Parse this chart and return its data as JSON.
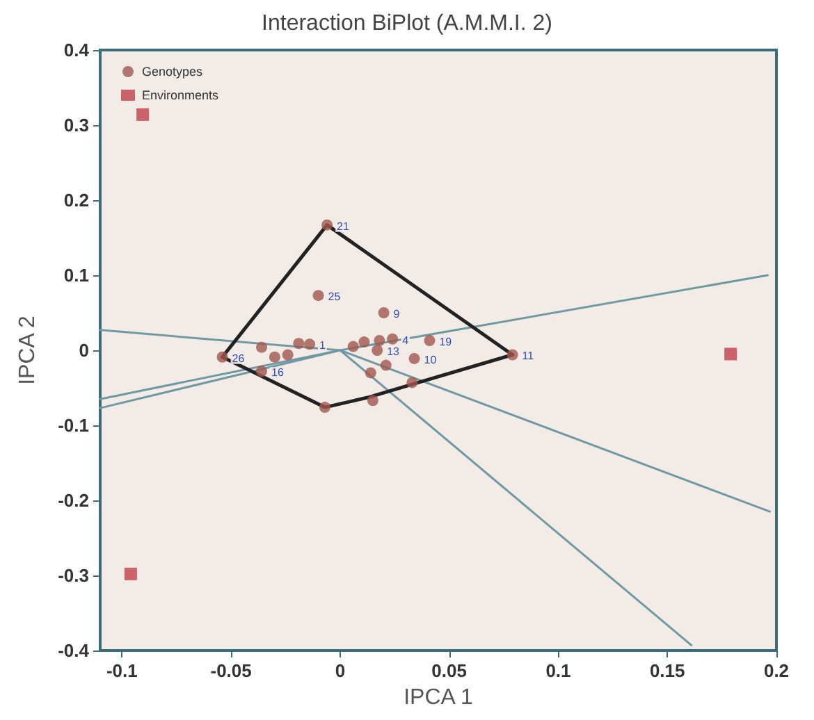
{
  "chart_data": {
    "type": "scatter",
    "title": "Interaction BiPlot (A.M.M.I. 2)",
    "xlabel": "IPCA 1",
    "ylabel": "IPCA 2",
    "xlim": [
      -0.11,
      0.2
    ],
    "xticks": [
      -0.1,
      -0.05,
      0,
      0.05,
      0.1,
      0.15,
      0.2
    ],
    "ylim": [
      -0.4,
      0.4
    ],
    "yticks": [
      -0.4,
      -0.3,
      -0.2,
      -0.1,
      0,
      0.1,
      0.2,
      0.3,
      0.4
    ],
    "grid": false,
    "legend": "top left",
    "series": [
      {
        "type": "line",
        "color": "#6f9aa3",
        "marker": "none",
        "x": [
          -0.11,
          0,
          0.196
        ],
        "values": [
          -0.065,
          0,
          0.1
        ]
      },
      {
        "type": "line",
        "color": "#6f9aa3",
        "marker": "none",
        "x": [
          -0.11,
          0,
          0.197
        ],
        "values": [
          0.027,
          0,
          -0.215
        ]
      },
      {
        "type": "line",
        "color": "#6f9aa3",
        "marker": "none",
        "x": [
          -0.11,
          0,
          0.161
        ],
        "values": [
          -0.077,
          0,
          -0.393
        ]
      },
      {
        "type": "line",
        "color": "#222222",
        "marker": "none",
        "x": [
          -0.054,
          -0.006,
          0.079
        ],
        "values": [
          -0.009,
          0.167,
          -0.006
        ]
      },
      {
        "type": "line",
        "color": "#222222",
        "marker": "none",
        "x": [
          -0.054,
          -0.042,
          -0.007,
          0.0125,
          0.038,
          0.079
        ],
        "values": [
          -0.009,
          -0.026,
          -0.076,
          -0.063,
          -0.041,
          -0.006
        ]
      },
      {
        "name": "Genotypes",
        "color": "#a0574f",
        "marker": "circle",
        "x": [
          -0.006,
          -0.01,
          0.02,
          0.079,
          -0.054,
          -0.036,
          0.041,
          0.024,
          0.018,
          0.017,
          0.034,
          0.021,
          0.014,
          0.033,
          -0.007,
          0.015,
          0.006,
          -0.014,
          -0.036,
          -0.019,
          -0.03,
          -0.024,
          0.011
        ],
        "values": [
          0.167,
          0.073,
          0.05,
          -0.006,
          -0.009,
          -0.028,
          0.013,
          0.015,
          0.013,
          0.0,
          -0.011,
          -0.02,
          -0.03,
          -0.043,
          -0.076,
          -0.067,
          0.005,
          0.008,
          0.004,
          0.009,
          -0.009,
          -0.006,
          0.011
        ]
      },
      {
        "name": "Environments",
        "color": "#c0404a",
        "marker": "square",
        "x": [
          0.179,
          -0.0905,
          -0.096
        ],
        "values": [
          -0.005,
          0.314,
          -0.298
        ]
      }
    ],
    "annotations": [
      {
        "text": "21",
        "x": -0.006,
        "y": 0.167
      },
      {
        "text": "25",
        "x": -0.01,
        "y": 0.073
      },
      {
        "text": "9",
        "x": 0.02,
        "y": 0.05
      },
      {
        "text": "11",
        "x": 0.079,
        "y": -0.006
      },
      {
        "text": "26",
        "x": -0.054,
        "y": -0.009
      },
      {
        "text": "16",
        "x": -0.036,
        "y": -0.028
      },
      {
        "text": "19",
        "x": 0.041,
        "y": 0.013
      },
      {
        "text": "4",
        "x": 0.024,
        "y": 0.015
      },
      {
        "text": "13",
        "x": 0.017,
        "y": 0.0
      },
      {
        "text": "10",
        "x": 0.034,
        "y": -0.011
      },
      {
        "text": "1",
        "x": -0.014,
        "y": 0.008
      }
    ]
  }
}
